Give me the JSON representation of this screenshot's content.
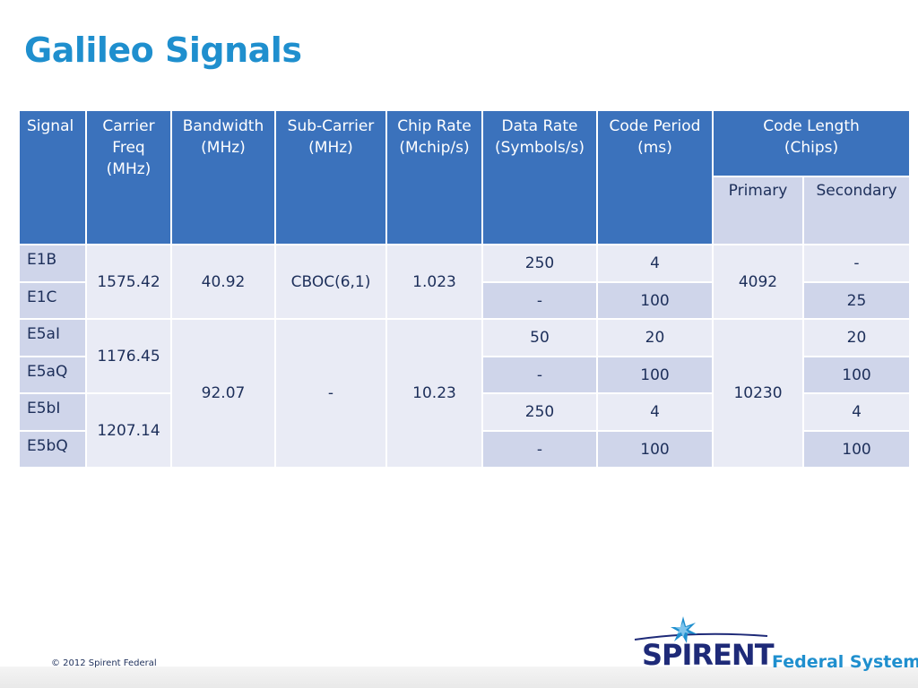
{
  "title": "Galileo Signals",
  "table": {
    "headers": {
      "signal": "Signal",
      "carrier": "Carrier Freq (MHz)",
      "bandwidth": "Bandwidth (MHz)",
      "subcarrier": "Sub-Carrier (MHz)",
      "chiprate": "Chip Rate (Mchip/s)",
      "datarate": "Data Rate (Symbols/s)",
      "codeperiod": "Code Period (ms)",
      "codelength": "Code Length (Chips)",
      "primary": "Primary",
      "secondary": "Secondary"
    },
    "rows": [
      {
        "signal": "E1B",
        "data_rate": "250",
        "code_period": "4",
        "secondary": "-"
      },
      {
        "signal": "E1C",
        "data_rate": "-",
        "code_period": "100",
        "secondary": "25"
      },
      {
        "signal": "E5aI",
        "data_rate": "50",
        "code_period": "20",
        "secondary": "20"
      },
      {
        "signal": "E5aQ",
        "data_rate": "-",
        "code_period": "100",
        "secondary": "100"
      },
      {
        "signal": "E5bI",
        "data_rate": "250",
        "code_period": "4",
        "secondary": "4"
      },
      {
        "signal": "E5bQ",
        "data_rate": "-",
        "code_period": "100",
        "secondary": "100"
      }
    ],
    "merged": {
      "e1_carrier": "1575.42",
      "e1_bandwidth": "40.92",
      "e1_subcarrier": "CBOC(6,1)",
      "e1_chiprate": "1.023",
      "e1_primary": "4092",
      "e5a_carrier": "1176.45",
      "e5b_carrier": "1207.14",
      "e5_bandwidth": "92.07",
      "e5_subcarrier": "-",
      "e5_chiprate": "10.23",
      "e5_primary": "10230"
    }
  },
  "footer": {
    "copyright": "© 2012 Spirent Federal",
    "logo_word": "SPIRENT",
    "logo_sub": "Federal Systems"
  }
}
